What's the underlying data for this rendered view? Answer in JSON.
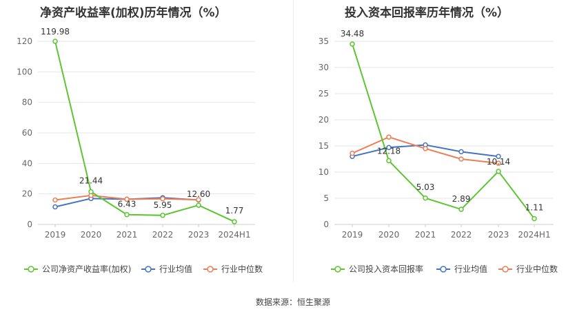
{
  "charts": [
    {
      "title": "净资产收益率(加权)历年情况（%）",
      "legend": [
        "公司净资产收益率(加权)",
        "行业均值",
        "行业中位数"
      ]
    },
    {
      "title": "投入资本回报率历年情况（%）",
      "legend": [
        "公司投入资本回报率",
        "行业均值",
        "行业中位数"
      ]
    }
  ],
  "source": "数据来源：恒生聚源",
  "colors": {
    "company": "#5cc530",
    "mean": "#4472c4",
    "median": "#ed7d54"
  },
  "chart_data": [
    {
      "type": "line",
      "title": "净资产收益率(加权)历年情况（%）",
      "categories": [
        "2019",
        "2020",
        "2021",
        "2022",
        "2023",
        "2024H1"
      ],
      "ylim": [
        0,
        120
      ],
      "yticks": [
        0,
        20,
        40,
        60,
        80,
        100,
        120
      ],
      "legend_position": "bottom-left",
      "series": [
        {
          "name": "公司净资产收益率(加权)",
          "values": [
            119.98,
            21.44,
            6.43,
            5.95,
            12.6,
            1.77
          ],
          "labels": [
            "119.98",
            "21.44",
            "6.43",
            "5.95",
            "12.60",
            "1.77"
          ]
        },
        {
          "name": "行业均值",
          "values": [
            11.5,
            17.0,
            16.5,
            17.5,
            16.0,
            null
          ]
        },
        {
          "name": "行业中位数",
          "values": [
            16.0,
            19.0,
            16.5,
            16.8,
            16.2,
            null
          ]
        }
      ]
    },
    {
      "type": "line",
      "title": "投入资本回报率历年情况（%）",
      "categories": [
        "2019",
        "2020",
        "2021",
        "2022",
        "2023",
        "2024H1"
      ],
      "ylim": [
        0,
        35
      ],
      "yticks": [
        0,
        5,
        10,
        15,
        20,
        25,
        30,
        35
      ],
      "legend_position": "bottom-left",
      "series": [
        {
          "name": "公司投入资本回报率",
          "values": [
            34.48,
            12.18,
            5.03,
            2.89,
            10.14,
            1.11
          ],
          "labels": [
            "34.48",
            "12.18",
            "5.03",
            "2.89",
            "10.14",
            "1.11"
          ]
        },
        {
          "name": "行业均值",
          "values": [
            13.0,
            14.7,
            15.2,
            13.9,
            13.0,
            null
          ]
        },
        {
          "name": "行业中位数",
          "values": [
            13.6,
            16.7,
            14.5,
            12.5,
            11.7,
            null
          ]
        }
      ]
    }
  ]
}
